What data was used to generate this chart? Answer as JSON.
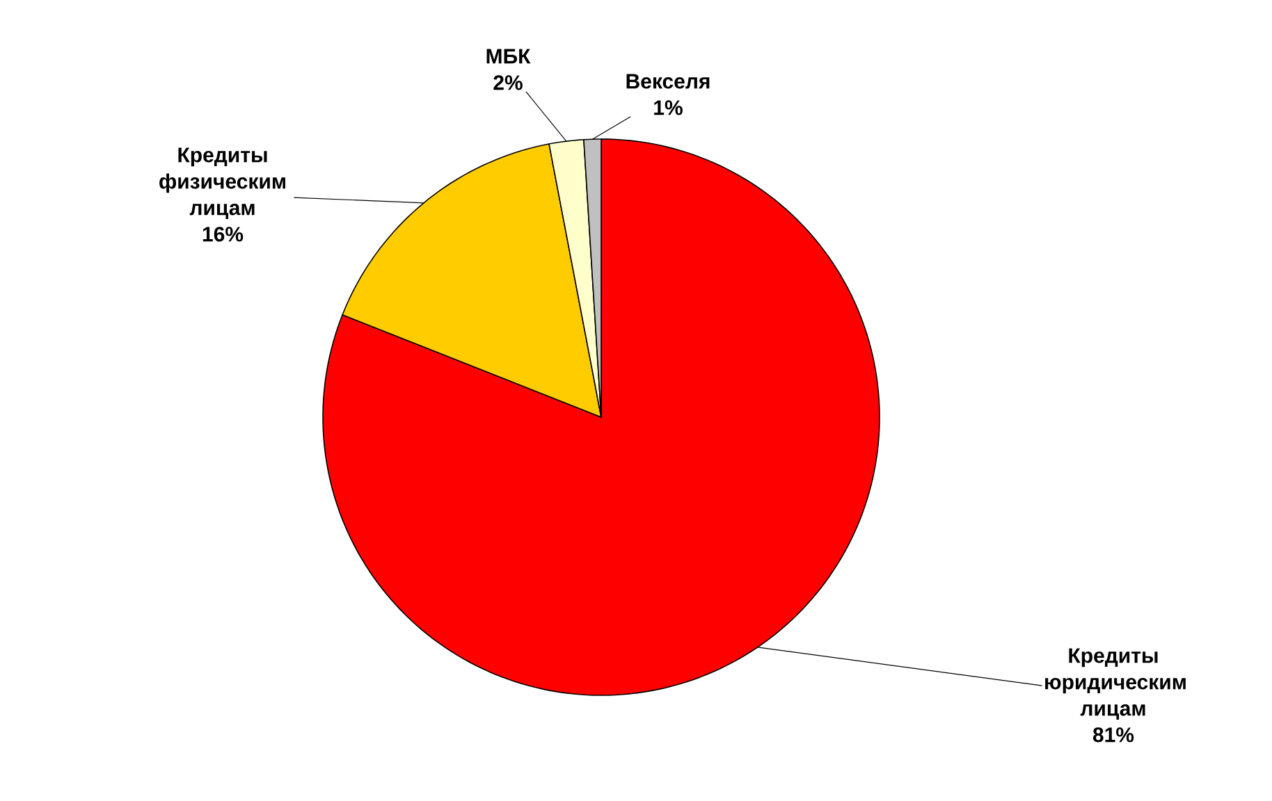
{
  "chart_data": {
    "type": "pie",
    "categories": [
      "Кредиты юридическим лицам",
      "Кредиты физическим лицам",
      "МБК",
      "Векселя"
    ],
    "values": [
      81,
      16,
      2,
      1
    ],
    "value_labels": [
      "81%",
      "16%",
      "2%",
      "1%"
    ],
    "colors": [
      "#ff0000",
      "#ffcc00",
      "#ffffcc",
      "#c0c0c0"
    ],
    "legend": false
  }
}
